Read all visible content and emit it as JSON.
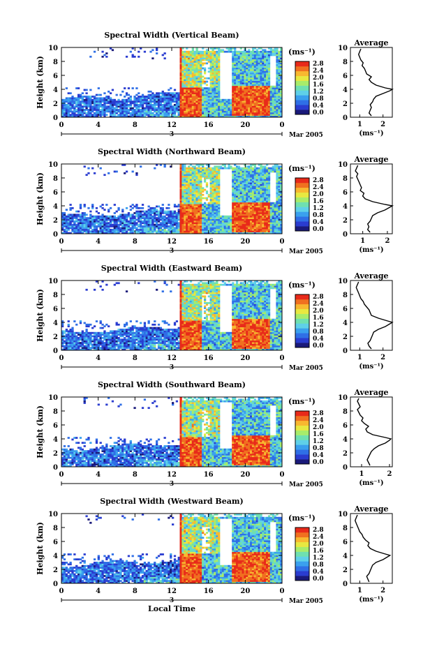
{
  "figure": {
    "xlabel": "Local Time",
    "unit_label": "(ms⁻¹)",
    "avg_xlabel": "(ms⁻¹)",
    "avg_title": "Average",
    "ylabel": "Height (km)",
    "date_day": "3",
    "date_month": "Mar 2005"
  },
  "colorscale": {
    "ticks": [
      "0.0",
      "0.4",
      "0.8",
      "1.2",
      "1.6",
      "2.0",
      "2.4",
      "2.8"
    ],
    "colors": [
      "#1a1a7a",
      "#2a3cd0",
      "#2f6fe6",
      "#3aa0ee",
      "#5fd0e8",
      "#6fe0b0",
      "#a8ec6a",
      "#e8e840",
      "#f8b830",
      "#f07020",
      "#e82a1a"
    ]
  },
  "chart_data": [
    {
      "type": "heatmap",
      "title": "Spectral Width (Vertical Beam)",
      "xticks": [
        "0",
        "4",
        "8",
        "12",
        "16",
        "20",
        "0"
      ],
      "yticks": [
        "0",
        "2",
        "4",
        "6",
        "8",
        "10"
      ],
      "xlim": [
        0,
        24
      ],
      "ylim": [
        0,
        10
      ],
      "zlim": [
        0.0,
        2.8
      ],
      "average_profile": {
        "title": "Average",
        "xticks": [
          "1",
          "2"
        ],
        "xlim": [
          0.6,
          2.4
        ],
        "height": [
          0.2,
          0.6,
          1.0,
          1.4,
          1.8,
          2.2,
          2.6,
          3.0,
          3.4,
          3.8,
          4.0,
          4.2,
          4.6,
          5.0,
          5.4,
          5.8,
          6.2,
          6.6,
          7.0,
          7.4,
          7.8,
          8.2,
          8.6,
          9.0,
          9.4,
          9.8
        ],
        "width": [
          1.5,
          1.4,
          1.45,
          1.5,
          1.45,
          1.55,
          1.6,
          1.7,
          2.0,
          2.3,
          2.4,
          2.1,
          1.7,
          1.5,
          1.4,
          1.5,
          1.3,
          1.25,
          1.2,
          1.1,
          1.15,
          1.05,
          1.0,
          0.95,
          1.0,
          1.05
        ]
      }
    },
    {
      "type": "heatmap",
      "title": "Spectral Width (Northward Beam)",
      "xticks": [
        "0",
        "4",
        "8",
        "12",
        "16",
        "20",
        "0"
      ],
      "yticks": [
        "0",
        "2",
        "4",
        "6",
        "8",
        "10"
      ],
      "xlim": [
        0,
        24
      ],
      "ylim": [
        0,
        10
      ],
      "zlim": [
        0.0,
        2.8
      ],
      "average_profile": {
        "title": "Average",
        "xticks": [
          "1",
          "2"
        ],
        "xlim": [
          0.5,
          2.2
        ],
        "height": [
          0.2,
          0.6,
          1.0,
          1.4,
          1.8,
          2.2,
          2.6,
          3.0,
          3.4,
          3.8,
          4.0,
          4.2,
          4.6,
          5.0,
          5.4,
          5.8,
          6.2,
          6.6,
          7.0,
          7.4,
          7.8,
          8.2,
          8.6,
          9.0,
          9.4,
          9.8
        ],
        "width": [
          1.3,
          1.2,
          1.25,
          1.2,
          1.3,
          1.35,
          1.4,
          1.6,
          1.9,
          2.1,
          2.2,
          1.9,
          1.4,
          1.1,
          1.0,
          1.05,
          0.9,
          0.95,
          0.9,
          0.85,
          0.8,
          0.75,
          0.8,
          0.7,
          0.75,
          0.8
        ]
      }
    },
    {
      "type": "heatmap",
      "title": "Spectral Width (Eastward Beam)",
      "xticks": [
        "0",
        "4",
        "8",
        "12",
        "16",
        "20",
        "0"
      ],
      "yticks": [
        "0",
        "2",
        "4",
        "6",
        "8",
        "10"
      ],
      "xlim": [
        0,
        24
      ],
      "ylim": [
        0,
        10
      ],
      "zlim": [
        0.0,
        2.8
      ],
      "average_profile": {
        "title": "Average",
        "xticks": [
          "1",
          "2"
        ],
        "xlim": [
          0.6,
          2.4
        ],
        "height": [
          0.2,
          0.6,
          1.0,
          1.4,
          1.8,
          2.2,
          2.6,
          3.0,
          3.4,
          3.8,
          4.0,
          4.2,
          4.6,
          5.0,
          5.4,
          5.8,
          6.2,
          6.6,
          7.0,
          7.4,
          7.8,
          8.2,
          8.6,
          9.0,
          9.4,
          9.8
        ],
        "width": [
          1.5,
          1.4,
          1.35,
          1.45,
          1.5,
          1.55,
          1.6,
          1.8,
          2.1,
          2.3,
          2.4,
          2.2,
          1.8,
          1.5,
          1.45,
          1.4,
          1.3,
          1.2,
          1.15,
          1.05,
          1.0,
          0.95,
          0.9,
          0.85,
          0.9,
          0.95
        ]
      }
    },
    {
      "type": "heatmap",
      "title": "Spectral Width (Southward Beam)",
      "xticks": [
        "0",
        "4",
        "8",
        "12",
        "16",
        "20",
        "0"
      ],
      "yticks": [
        "0",
        "2",
        "4",
        "6",
        "8",
        "10"
      ],
      "xlim": [
        0,
        24
      ],
      "ylim": [
        0,
        10
      ],
      "zlim": [
        0.0,
        2.8
      ],
      "average_profile": {
        "title": "Average",
        "xticks": [
          "1",
          "2"
        ],
        "xlim": [
          0.6,
          2.1
        ],
        "height": [
          0.2,
          0.6,
          1.0,
          1.4,
          1.8,
          2.2,
          2.6,
          3.0,
          3.4,
          3.8,
          4.0,
          4.2,
          4.6,
          5.0,
          5.4,
          5.8,
          6.2,
          6.6,
          7.0,
          7.4,
          7.8,
          8.2,
          8.6,
          9.0,
          9.4,
          9.8
        ],
        "width": [
          1.3,
          1.25,
          1.2,
          1.25,
          1.3,
          1.35,
          1.45,
          1.6,
          1.85,
          2.0,
          2.05,
          1.85,
          1.4,
          1.2,
          1.15,
          1.25,
          1.1,
          1.0,
          1.05,
          0.95,
          0.9,
          0.85,
          0.95,
          0.9,
          0.85,
          0.9
        ]
      }
    },
    {
      "type": "heatmap",
      "title": "Spectral Width (Westward Beam)",
      "xticks": [
        "0",
        "4",
        "8",
        "12",
        "16",
        "20",
        "0"
      ],
      "yticks": [
        "0",
        "2",
        "4",
        "6",
        "8",
        "10"
      ],
      "xlim": [
        0,
        24
      ],
      "ylim": [
        0,
        10
      ],
      "zlim": [
        0.0,
        2.8
      ],
      "average_profile": {
        "title": "Average",
        "xticks": [
          "1",
          "2"
        ],
        "xlim": [
          0.6,
          2.4
        ],
        "height": [
          0.2,
          0.6,
          1.0,
          1.4,
          1.8,
          2.2,
          2.6,
          3.0,
          3.4,
          3.8,
          4.0,
          4.2,
          4.6,
          5.0,
          5.4,
          5.8,
          6.2,
          6.6,
          7.0,
          7.4,
          7.8,
          8.2,
          8.6,
          9.0,
          9.4,
          9.8
        ],
        "width": [
          1.4,
          1.35,
          1.3,
          1.4,
          1.45,
          1.5,
          1.55,
          1.7,
          2.0,
          2.2,
          2.3,
          2.1,
          1.7,
          1.45,
          1.35,
          1.4,
          1.25,
          1.15,
          1.1,
          1.0,
          0.95,
          0.9,
          0.85,
          0.8,
          0.85,
          0.9
        ]
      }
    }
  ]
}
